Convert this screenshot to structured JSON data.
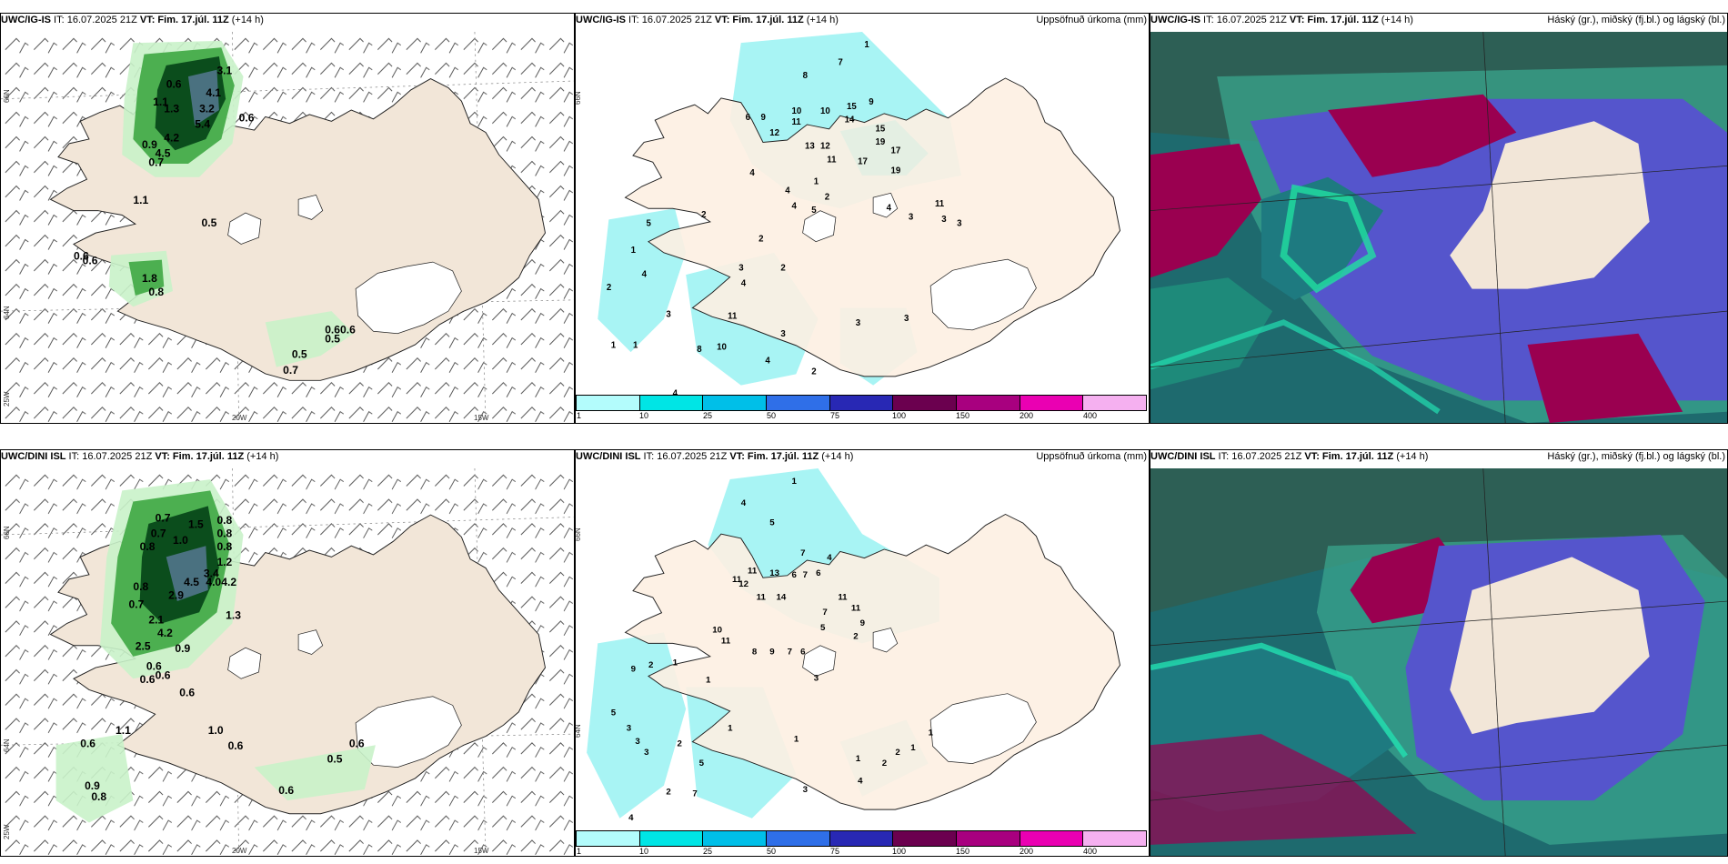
{
  "panels": {
    "p1": {
      "model": "UWC/IG-IS",
      "it": " IT: 16.07.2025 21Z ",
      "vt": "VT: Fim. 17.júl. 11Z",
      "lead": " (+14 h)",
      "right": ""
    },
    "p2": {
      "model": "UWC/IG-IS",
      "it": " IT: 16.07.2025 21Z ",
      "vt": "VT: Fim. 17.júl. 11Z",
      "lead": " (+14 h)",
      "right": "Uppsöfnuð úrkoma (mm)"
    },
    "p3": {
      "model": "UWC/IG-IS",
      "it": " IT: 16.07.2025 21Z ",
      "vt": "VT: Fim. 17.júl. 11Z",
      "lead": " (+14 h)",
      "right": "Háský (gr.), miðský (fj.bl.) og lágský (bl.)"
    },
    "p4": {
      "model": "UWC/DINI ISL",
      "it": " IT: 16.07.2025 21Z ",
      "vt": "VT: Fim. 17.júl. 11Z",
      "lead": " (+14 h)",
      "right": ""
    },
    "p5": {
      "model": "UWC/DINI ISL",
      "it": " IT: 16.07.2025 21Z ",
      "vt": "VT: Fim. 17.júl. 11Z",
      "lead": " (+14 h)",
      "right": "Uppsöfnuð úrkoma (mm)"
    },
    "p6": {
      "model": "UWC/DINI ISL",
      "it": " IT: 16.07.2025 21Z ",
      "vt": "VT: Fim. 17.júl. 11Z",
      "lead": " (+14 h)",
      "right": "Háský (gr.), miðský (fj.bl.) og lágský (bl.)"
    }
  },
  "axes": {
    "lat66": "66N",
    "lat64": "64N",
    "lon25": "25W",
    "lon20": "20W",
    "lon15": "15W"
  },
  "legend": {
    "ticks": [
      "1",
      "10",
      "25",
      "50",
      "75",
      "100",
      "150",
      "200",
      "400"
    ],
    "colors": [
      "#b3fcfc",
      "#00e5e5",
      "#00bfe8",
      "#2f6fe8",
      "#2828b4",
      "#6b004f",
      "#a8007f",
      "#ea00b2",
      "#f5b0f0"
    ]
  },
  "colors": {
    "land": "#f2e6d8",
    "precip_light": "#c9f2c9",
    "precip_mid": "#4caf50",
    "precip_dark": "#0b4d1c",
    "accum": "#a8f4f4",
    "cloud_high": "#5555cc",
    "cloud_mid": "#9a0050",
    "cloud_low": "#1e8a7a"
  },
  "labels": {
    "p1": [
      "3.1",
      "0.6",
      "4.1",
      "1.1",
      "1.3",
      "3.2",
      "5.4",
      "0.6",
      "4.2",
      "0.9",
      "4.5",
      "0.7",
      "1.1",
      "0.5",
      "0.6",
      "0.6",
      "1.8",
      "0.8",
      "0.60.6",
      "0.5",
      "0.5",
      "0.7"
    ],
    "p2": [
      "1",
      "7",
      "8",
      "6",
      "9",
      "10",
      "11",
      "10",
      "15",
      "9",
      "12",
      "14",
      "13",
      "12",
      "15",
      "19",
      "17",
      "11",
      "17",
      "19",
      "4",
      "4",
      "1",
      "2",
      "4",
      "5",
      "4",
      "3",
      "11",
      "3",
      "3",
      "2",
      "5",
      "1",
      "4",
      "2",
      "2",
      "3",
      "4",
      "2",
      "11",
      "3",
      "8",
      "10",
      "4",
      "3",
      "3",
      "3",
      "2",
      "1",
      "1",
      "4"
    ],
    "p4": [
      "0.7",
      "0.8",
      "0.7",
      "1.5",
      "0.8",
      "0.8",
      "1.0",
      "0.8",
      "1.2",
      "3.4",
      "4.5",
      "4.0",
      "4.2",
      "2.9",
      "1.3",
      "0.8",
      "0.7",
      "2.1",
      "4.2",
      "2.5",
      "0.9",
      "0.6",
      "0.6",
      "0.6",
      "0.6",
      "1.1",
      "1.0",
      "0.6",
      "0.6",
      "0.5",
      "0.9",
      "0.8",
      "0.6",
      "0.6"
    ],
    "p5": [
      "1",
      "4",
      "5",
      "7",
      "4",
      "11",
      "13",
      "6",
      "7",
      "6",
      "11",
      "12",
      "11",
      "14",
      "11",
      "11",
      "7",
      "9",
      "10",
      "11",
      "8",
      "9",
      "7",
      "6",
      "3",
      "5",
      "2",
      "9",
      "2",
      "1",
      "1",
      "5",
      "3",
      "3",
      "3",
      "1",
      "2",
      "5",
      "7",
      "2",
      "4",
      "1",
      "1",
      "2",
      "2",
      "1",
      "1",
      "4",
      "3"
    ]
  }
}
